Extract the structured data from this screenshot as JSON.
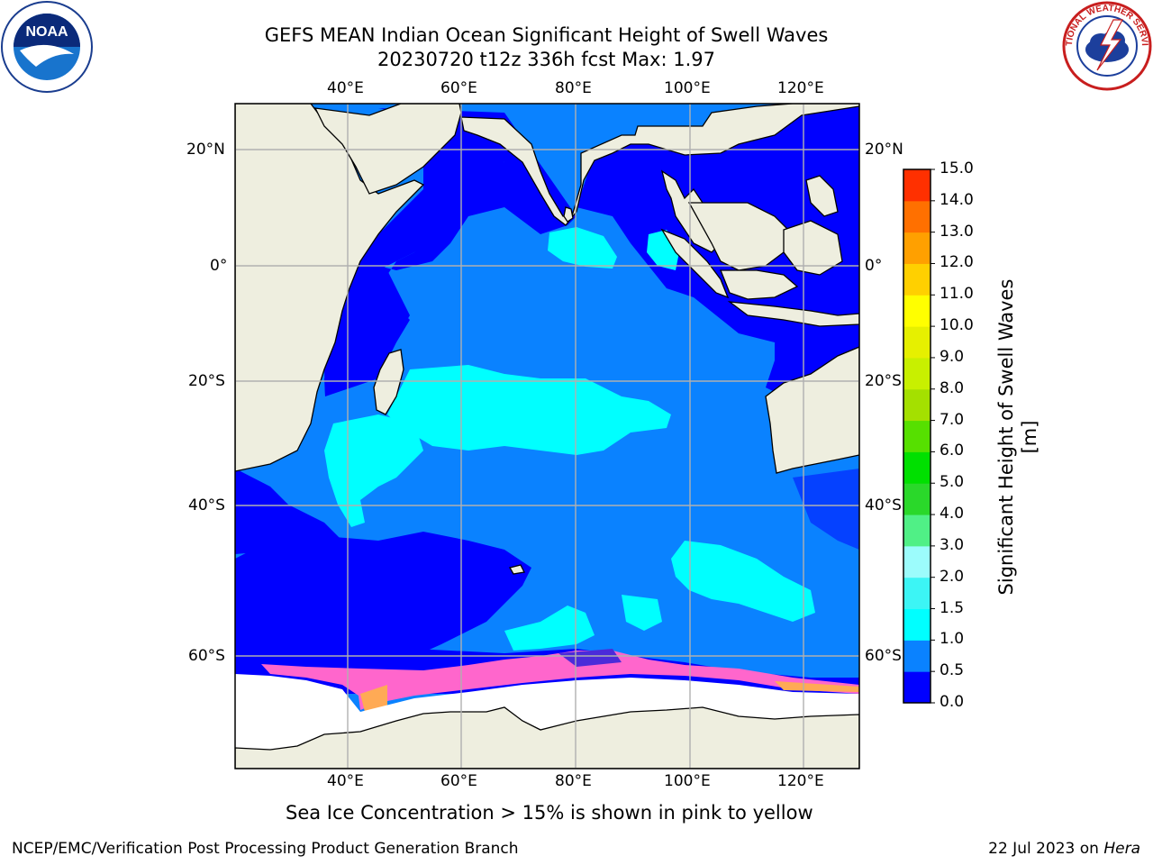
{
  "title": {
    "line1": "GEFS MEAN Indian Ocean Significant Height of Swell Waves",
    "line2": "20230720 t12z 336h fcst   Max: 1.97"
  },
  "logos": {
    "left": {
      "name": "noaa-logo",
      "text": "NOAA",
      "ring_text": "NATIONAL OCEANIC AND ATMOSPHERIC ADMINISTRATION · U.S. DEPARTMENT OF COMMERCE"
    },
    "right": {
      "name": "nws-logo",
      "ring_text": "NATIONAL WEATHER SERVICE"
    }
  },
  "map": {
    "lon_ticks_top": [
      "40°E",
      "60°E",
      "80°E",
      "100°E",
      "120°E"
    ],
    "lon_ticks_bottom": [
      "40°E",
      "60°E",
      "80°E",
      "100°E",
      "120°E"
    ],
    "lat_ticks_left": [
      "20°N",
      "0°",
      "20°S",
      "40°S",
      "60°S"
    ],
    "lat_ticks_right": [
      "20°N",
      "0°",
      "20°S",
      "40°S",
      "60°S"
    ],
    "extent": {
      "lon": [
        20,
        130
      ],
      "lat": [
        -75,
        28
      ]
    },
    "colors": {
      "land": "#eeeedf",
      "ocean_0_05": "#0000ff",
      "ocean_05_1": "#0a82ff",
      "ocean_1_15": "#00ffff",
      "ice": "#ff66cc",
      "ice_high": "#ffcc33",
      "grid": "#b0b0b0"
    }
  },
  "colorbar": {
    "label": "Significant Height of Swell Waves [m]",
    "ticks": [
      "0.0",
      "0.5",
      "1.0",
      "1.5",
      "2.0",
      "3.0",
      "4.0",
      "5.0",
      "6.0",
      "7.0",
      "8.0",
      "9.0",
      "10.0",
      "11.0",
      "12.0",
      "13.0",
      "14.0",
      "15.0"
    ],
    "colors": [
      "#0000ff",
      "#0a82ff",
      "#00ffff",
      "#3cf5f5",
      "#9cfcfc",
      "#50f086",
      "#2ad82a",
      "#00e000",
      "#56e000",
      "#a4e000",
      "#c8f000",
      "#e6f000",
      "#ffff00",
      "#ffd000",
      "#ffa000",
      "#ff7000",
      "#ff3000",
      "#ff0000"
    ]
  },
  "caption": "Sea Ice Concentration > 15% is shown in pink to yellow",
  "footer": {
    "left": "NCEP/EMC/Verification Post Processing Product Generation Branch",
    "right_prefix": "22 Jul 2023 on ",
    "right_host": "Hera"
  }
}
